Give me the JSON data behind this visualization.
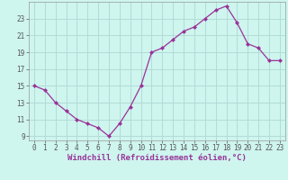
{
  "x": [
    0,
    1,
    2,
    3,
    4,
    5,
    6,
    7,
    8,
    9,
    10,
    11,
    12,
    13,
    14,
    15,
    16,
    17,
    18,
    19,
    20,
    21,
    22,
    23
  ],
  "y": [
    15,
    14.5,
    13,
    12,
    11,
    10.5,
    10,
    9,
    10.5,
    12.5,
    15,
    19,
    19.5,
    20.5,
    21.5,
    22,
    23,
    24,
    24.5,
    22.5,
    20,
    19.5,
    18,
    18
  ],
  "line_color": "#993399",
  "marker": "D",
  "marker_size": 2.5,
  "bg_color": "#cef5ee",
  "grid_color": "#b0d8d4",
  "xlabel": "Windchill (Refroidissement éolien,°C)",
  "xlim": [
    -0.5,
    23.5
  ],
  "ylim": [
    8.5,
    25.0
  ],
  "yticks": [
    9,
    11,
    13,
    15,
    17,
    19,
    21,
    23
  ],
  "xticks": [
    0,
    1,
    2,
    3,
    4,
    5,
    6,
    7,
    8,
    9,
    10,
    11,
    12,
    13,
    14,
    15,
    16,
    17,
    18,
    19,
    20,
    21,
    22,
    23
  ],
  "xtick_labels": [
    "0",
    "1",
    "2",
    "3",
    "4",
    "5",
    "6",
    "7",
    "8",
    "9",
    "10",
    "11",
    "12",
    "13",
    "14",
    "15",
    "16",
    "17",
    "18",
    "19",
    "20",
    "21",
    "22",
    "23"
  ],
  "tick_fontsize": 5.5,
  "xlabel_fontsize": 6.5,
  "spine_color": "#999999",
  "tick_color": "#555555"
}
